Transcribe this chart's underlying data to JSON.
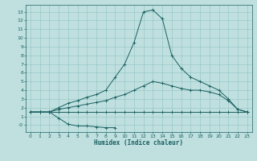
{
  "xlabel": "Humidex (Indice chaleur)",
  "bg_color": "#c0e0e0",
  "line_color": "#1a6060",
  "grid_color": "#90c0c0",
  "xlim": [
    -0.5,
    23.5
  ],
  "ylim": [
    -0.8,
    13.8
  ],
  "xticks": [
    0,
    1,
    2,
    3,
    4,
    5,
    6,
    7,
    8,
    9,
    10,
    11,
    12,
    13,
    14,
    15,
    16,
    17,
    18,
    19,
    20,
    21,
    22,
    23
  ],
  "yticks": [
    0,
    1,
    2,
    3,
    4,
    5,
    6,
    7,
    8,
    9,
    10,
    11,
    12,
    13
  ],
  "line_peak_x": [
    0,
    1,
    2,
    3,
    4,
    5,
    6,
    7,
    8,
    9,
    10,
    11,
    12,
    13,
    14,
    15,
    16,
    17,
    18,
    19,
    20,
    21,
    22,
    23
  ],
  "line_peak_y": [
    1.5,
    1.5,
    1.5,
    2.0,
    2.5,
    2.8,
    3.2,
    3.5,
    4.0,
    5.5,
    7.0,
    9.5,
    13.0,
    13.2,
    12.2,
    8.0,
    6.5,
    5.5,
    5.0,
    4.5,
    4.0,
    3.0,
    1.8,
    1.5
  ],
  "line_med_x": [
    0,
    1,
    2,
    3,
    4,
    5,
    6,
    7,
    8,
    9,
    10,
    11,
    12,
    13,
    14,
    15,
    16,
    17,
    18,
    19,
    20,
    21,
    22,
    23
  ],
  "line_med_y": [
    1.5,
    1.5,
    1.5,
    1.8,
    2.0,
    2.2,
    2.4,
    2.6,
    2.8,
    3.2,
    3.5,
    4.0,
    4.5,
    5.0,
    4.8,
    4.5,
    4.2,
    4.0,
    4.0,
    3.8,
    3.5,
    2.8,
    1.8,
    1.5
  ],
  "line_flat_x": [
    0,
    1,
    2,
    3,
    4,
    5,
    6,
    7,
    8,
    9,
    10,
    11,
    12,
    13,
    14,
    15,
    16,
    17,
    18,
    19,
    20,
    21,
    22,
    23
  ],
  "line_flat_y": [
    1.5,
    1.5,
    1.5,
    1.5,
    1.5,
    1.5,
    1.5,
    1.5,
    1.5,
    1.5,
    1.5,
    1.5,
    1.5,
    1.5,
    1.5,
    1.5,
    1.5,
    1.5,
    1.5,
    1.5,
    1.5,
    1.5,
    1.5,
    1.5
  ],
  "line_low_x": [
    0,
    1,
    2,
    3,
    4,
    5,
    6,
    7,
    8,
    9
  ],
  "line_low_y": [
    1.5,
    1.5,
    1.5,
    0.8,
    0.1,
    -0.1,
    -0.1,
    -0.2,
    -0.3,
    -0.3
  ]
}
